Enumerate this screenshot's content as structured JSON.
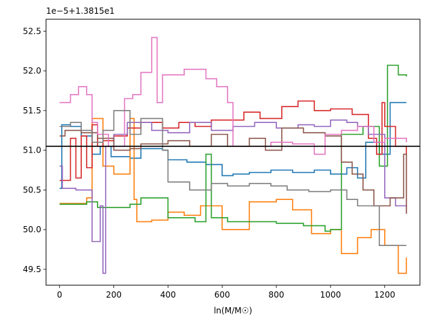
{
  "chart_data": {
    "type": "line",
    "title": "",
    "offset_text": "1e−5+1.3815e1",
    "xlabel": "ln(M/M☉)",
    "ylabel": "",
    "xlim": [
      -50,
      1330
    ],
    "ylim": [
      49.3,
      52.65
    ],
    "x_ticks": [
      0,
      200,
      400,
      600,
      800,
      1000,
      1200
    ],
    "y_ticks": [
      49.5,
      50.0,
      50.5,
      51.0,
      51.5,
      52.0,
      52.5
    ],
    "grid": false,
    "reference_line": {
      "y": 51.05,
      "color": "#000000"
    },
    "series": [
      {
        "color": "#1f77b4",
        "points": [
          [
            0,
            50.52
          ],
          [
            8,
            51.32
          ],
          [
            40,
            51.3
          ],
          [
            80,
            51.18
          ],
          [
            120,
            50.95
          ],
          [
            150,
            51.05
          ],
          [
            190,
            50.92
          ],
          [
            260,
            50.9
          ],
          [
            300,
            51.02
          ],
          [
            380,
            51.0
          ],
          [
            400,
            50.88
          ],
          [
            440,
            50.88
          ],
          [
            470,
            50.85
          ],
          [
            540,
            50.82
          ],
          [
            600,
            50.68
          ],
          [
            640,
            50.7
          ],
          [
            700,
            50.72
          ],
          [
            780,
            50.75
          ],
          [
            860,
            50.72
          ],
          [
            940,
            50.75
          ],
          [
            1000,
            50.7
          ],
          [
            1060,
            50.78
          ],
          [
            1100,
            50.65
          ],
          [
            1130,
            51.1
          ],
          [
            1180,
            50.95
          ],
          [
            1220,
            51.6
          ],
          [
            1280,
            51.6
          ]
        ]
      },
      {
        "color": "#ff7f0e",
        "points": [
          [
            0,
            50.33
          ],
          [
            60,
            50.33
          ],
          [
            100,
            50.4
          ],
          [
            120,
            51.4
          ],
          [
            160,
            50.8
          ],
          [
            200,
            50.7
          ],
          [
            260,
            51.4
          ],
          [
            275,
            50.38
          ],
          [
            285,
            50.1
          ],
          [
            340,
            50.12
          ],
          [
            400,
            50.22
          ],
          [
            460,
            50.18
          ],
          [
            520,
            50.3
          ],
          [
            560,
            50.3
          ],
          [
            600,
            50.0
          ],
          [
            700,
            50.35
          ],
          [
            800,
            50.38
          ],
          [
            860,
            50.25
          ],
          [
            930,
            49.95
          ],
          [
            1000,
            50.0
          ],
          [
            1040,
            49.7
          ],
          [
            1100,
            49.9
          ],
          [
            1150,
            50.0
          ],
          [
            1200,
            49.8
          ],
          [
            1250,
            49.45
          ],
          [
            1280,
            49.65
          ]
        ]
      },
      {
        "color": "#2ca02c",
        "points": [
          [
            0,
            50.32
          ],
          [
            60,
            50.32
          ],
          [
            100,
            50.35
          ],
          [
            140,
            50.28
          ],
          [
            200,
            50.28
          ],
          [
            260,
            50.32
          ],
          [
            300,
            50.4
          ],
          [
            400,
            50.15
          ],
          [
            500,
            50.1
          ],
          [
            540,
            50.95
          ],
          [
            560,
            50.15
          ],
          [
            620,
            50.1
          ],
          [
            700,
            50.1
          ],
          [
            800,
            50.08
          ],
          [
            900,
            50.05
          ],
          [
            980,
            49.98
          ],
          [
            1000,
            50.0
          ],
          [
            1040,
            51.2
          ],
          [
            1120,
            51.3
          ],
          [
            1180,
            50.8
          ],
          [
            1210,
            52.07
          ],
          [
            1250,
            51.95
          ],
          [
            1280,
            51.93
          ]
        ]
      },
      {
        "color": "#d62728",
        "points": [
          [
            0,
            50.62
          ],
          [
            40,
            51.15
          ],
          [
            60,
            50.65
          ],
          [
            80,
            51.18
          ],
          [
            100,
            50.78
          ],
          [
            120,
            51.32
          ],
          [
            140,
            51.05
          ],
          [
            160,
            51.12
          ],
          [
            200,
            51.18
          ],
          [
            250,
            51.28
          ],
          [
            300,
            51.35
          ],
          [
            380,
            51.28
          ],
          [
            440,
            51.35
          ],
          [
            500,
            51.3
          ],
          [
            560,
            51.38
          ],
          [
            620,
            51.38
          ],
          [
            680,
            51.48
          ],
          [
            740,
            51.4
          ],
          [
            820,
            51.55
          ],
          [
            880,
            51.62
          ],
          [
            940,
            51.5
          ],
          [
            1000,
            51.52
          ],
          [
            1080,
            51.45
          ],
          [
            1140,
            51.15
          ],
          [
            1170,
            50.95
          ],
          [
            1190,
            51.6
          ],
          [
            1200,
            51.3
          ],
          [
            1240,
            51.05
          ],
          [
            1280,
            50.2
          ]
        ]
      },
      {
        "color": "#9467bd",
        "points": [
          [
            0,
            50.8
          ],
          [
            10,
            50.52
          ],
          [
            60,
            50.5
          ],
          [
            100,
            50.5
          ],
          [
            120,
            49.85
          ],
          [
            150,
            50.3
          ],
          [
            160,
            49.45
          ],
          [
            170,
            51.05
          ],
          [
            200,
            51.2
          ],
          [
            250,
            51.35
          ],
          [
            300,
            51.35
          ],
          [
            340,
            51.25
          ],
          [
            400,
            51.22
          ],
          [
            480,
            51.35
          ],
          [
            560,
            51.25
          ],
          [
            640,
            51.3
          ],
          [
            720,
            51.35
          ],
          [
            800,
            51.28
          ],
          [
            880,
            51.32
          ],
          [
            940,
            51.3
          ],
          [
            1000,
            51.38
          ],
          [
            1060,
            51.35
          ],
          [
            1100,
            51.3
          ],
          [
            1140,
            51.2
          ],
          [
            1200,
            50.4
          ],
          [
            1240,
            50.3
          ],
          [
            1280,
            50.28
          ]
        ]
      },
      {
        "color": "#8c564b",
        "points": [
          [
            0,
            51.18
          ],
          [
            20,
            51.25
          ],
          [
            80,
            51.22
          ],
          [
            140,
            51.15
          ],
          [
            200,
            51.0
          ],
          [
            260,
            51.02
          ],
          [
            300,
            51.08
          ],
          [
            400,
            51.12
          ],
          [
            480,
            51.05
          ],
          [
            560,
            51.2
          ],
          [
            620,
            51.05
          ],
          [
            700,
            51.15
          ],
          [
            760,
            51.0
          ],
          [
            820,
            51.28
          ],
          [
            900,
            51.22
          ],
          [
            980,
            51.18
          ],
          [
            1040,
            50.85
          ],
          [
            1080,
            50.7
          ],
          [
            1120,
            50.5
          ],
          [
            1160,
            50.3
          ],
          [
            1220,
            50.4
          ],
          [
            1270,
            50.95
          ],
          [
            1280,
            50.2
          ]
        ]
      },
      {
        "color": "#e377c2",
        "points": [
          [
            0,
            51.6
          ],
          [
            20,
            51.6
          ],
          [
            40,
            51.7
          ],
          [
            70,
            51.8
          ],
          [
            100,
            51.7
          ],
          [
            120,
            51.35
          ],
          [
            140,
            51.2
          ],
          [
            180,
            51.05
          ],
          [
            240,
            51.65
          ],
          [
            270,
            51.7
          ],
          [
            300,
            51.98
          ],
          [
            340,
            52.42
          ],
          [
            360,
            51.6
          ],
          [
            380,
            51.95
          ],
          [
            460,
            52.02
          ],
          [
            540,
            51.9
          ],
          [
            580,
            51.8
          ],
          [
            620,
            51.6
          ],
          [
            640,
            51.05
          ],
          [
            700,
            51.05
          ],
          [
            780,
            51.1
          ],
          [
            860,
            51.08
          ],
          [
            940,
            50.95
          ],
          [
            980,
            51.2
          ],
          [
            1040,
            51.25
          ],
          [
            1100,
            51.3
          ],
          [
            1160,
            51.1
          ],
          [
            1200,
            51.15
          ],
          [
            1240,
            51.15
          ],
          [
            1280,
            51.1
          ]
        ]
      },
      {
        "color": "#7f7f7f",
        "points": [
          [
            0,
            51.3
          ],
          [
            40,
            51.35
          ],
          [
            80,
            51.25
          ],
          [
            120,
            51.1
          ],
          [
            160,
            51.25
          ],
          [
            200,
            51.5
          ],
          [
            260,
            51.2
          ],
          [
            300,
            51.4
          ],
          [
            380,
            51.0
          ],
          [
            400,
            50.6
          ],
          [
            480,
            50.5
          ],
          [
            560,
            50.58
          ],
          [
            620,
            50.55
          ],
          [
            700,
            50.58
          ],
          [
            780,
            50.55
          ],
          [
            840,
            50.5
          ],
          [
            920,
            50.48
          ],
          [
            1000,
            50.5
          ],
          [
            1060,
            50.38
          ],
          [
            1100,
            50.3
          ],
          [
            1140,
            50.3
          ],
          [
            1180,
            49.8
          ],
          [
            1220,
            49.8
          ],
          [
            1280,
            49.8
          ]
        ]
      }
    ]
  }
}
